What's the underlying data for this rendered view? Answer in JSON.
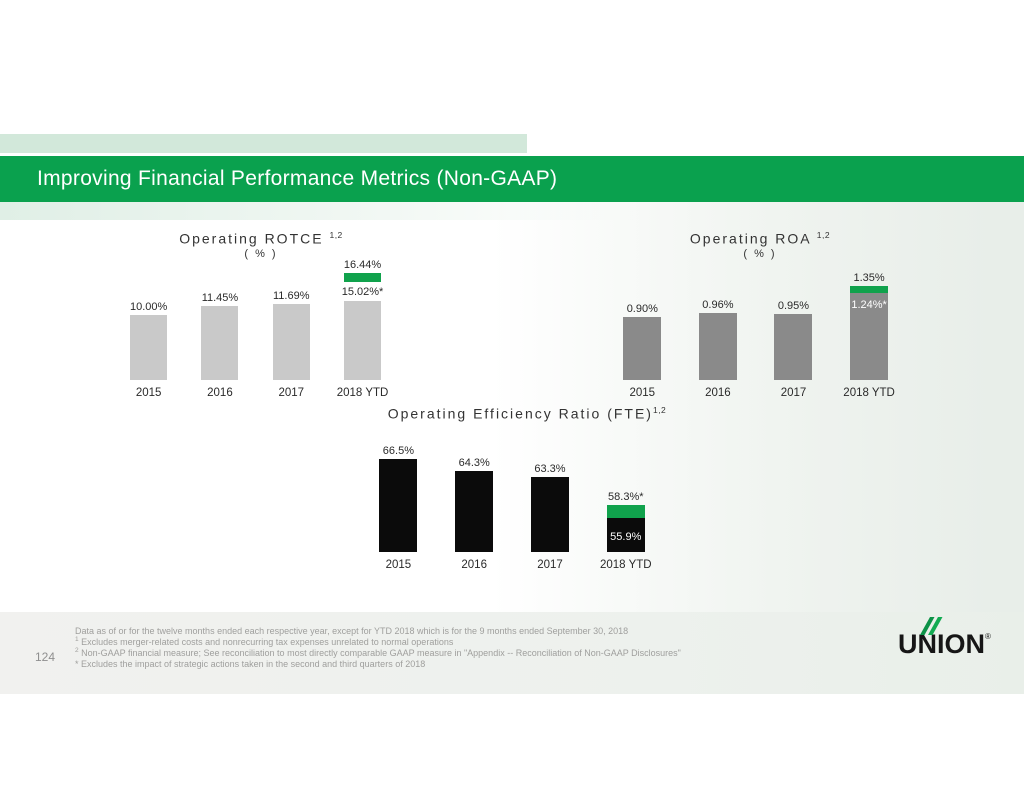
{
  "slide": {
    "title": "Improving Financial Performance Metrics (Non-GAAP)",
    "page_number": "124",
    "logo": {
      "text": "UNION",
      "registered": "®"
    },
    "colors": {
      "header_green": "#0aa14e",
      "light_green_band": "#d2e8da",
      "accent_green": "#10a24c",
      "rotce_bar_gray": "#c9c9c9",
      "roa_bar_gray": "#8a8a8a",
      "efficiency_bar_black": "#0b0b0b"
    }
  },
  "footnotes": {
    "intro": "Data as of or for the twelve months ended each respective year, except for YTD 2018 which is for the 9 months ended September 30, 2018",
    "notes": [
      {
        "sup": "1",
        "text": "Excludes merger-related costs and nonrecurring tax expenses unrelated to normal operations"
      },
      {
        "sup": "2",
        "text": "Non-GAAP financial measure; See reconciliation to most directly comparable GAAP measure in \"Appendix -- Reconciliation of Non-GAAP Disclosures\""
      },
      {
        "sup": "*",
        "text": "Excludes the impact of strategic actions taken in the second and third quarters of 2018"
      }
    ]
  },
  "chart_data": [
    {
      "id": "rotce",
      "type": "bar",
      "title": "Operating ROTCE ",
      "title_sup": "1,2",
      "subtitle": "( % )",
      "categories": [
        "2015",
        "2016",
        "2017",
        "2018 YTD"
      ],
      "values": [
        10.0,
        11.45,
        11.69,
        15.02
      ],
      "value_labels": [
        "10.00%",
        "11.45%",
        "11.69%",
        "15.02%*"
      ],
      "adjusted_total": {
        "category": "2018 YTD",
        "value": 16.44,
        "label": "16.44%"
      },
      "bar_color": "#c9c9c9",
      "accent_color": "#10a24c",
      "base_label_style": "boxed",
      "ylim": [
        0,
        17
      ],
      "grid": false,
      "axis_lines": false
    },
    {
      "id": "roa",
      "type": "bar",
      "title": "Operating ROA ",
      "title_sup": "1,2",
      "subtitle": "( % )",
      "categories": [
        "2015",
        "2016",
        "2017",
        "2018 YTD"
      ],
      "values": [
        0.9,
        0.96,
        0.95,
        1.24
      ],
      "value_labels": [
        "0.90%",
        "0.96%",
        "0.95%",
        "1.24%*"
      ],
      "adjusted_total": {
        "category": "2018 YTD",
        "value": 1.35,
        "label": "1.35%"
      },
      "bar_color": "#8a8a8a",
      "accent_color": "#10a24c",
      "base_label_style": "inside-white",
      "ylim": [
        0,
        1.4
      ],
      "grid": false,
      "axis_lines": false
    },
    {
      "id": "eff",
      "type": "bar",
      "title": "Operating Efficiency Ratio (FTE)",
      "title_sup": "1,2",
      "subtitle": "",
      "categories": [
        "2015",
        "2016",
        "2017",
        "2018 YTD"
      ],
      "values": [
        66.5,
        64.3,
        63.3,
        55.9
      ],
      "value_labels": [
        "66.5%",
        "64.3%",
        "63.3%",
        "55.9%"
      ],
      "adjusted_total": {
        "category": "2018 YTD",
        "value": 58.3,
        "label": "58.3%*"
      },
      "bar_color": "#0b0b0b",
      "accent_color": "#10a24c",
      "base_label_style": "inside-white",
      "ylim": [
        50,
        68
      ],
      "grid": false,
      "axis_lines": false
    }
  ]
}
